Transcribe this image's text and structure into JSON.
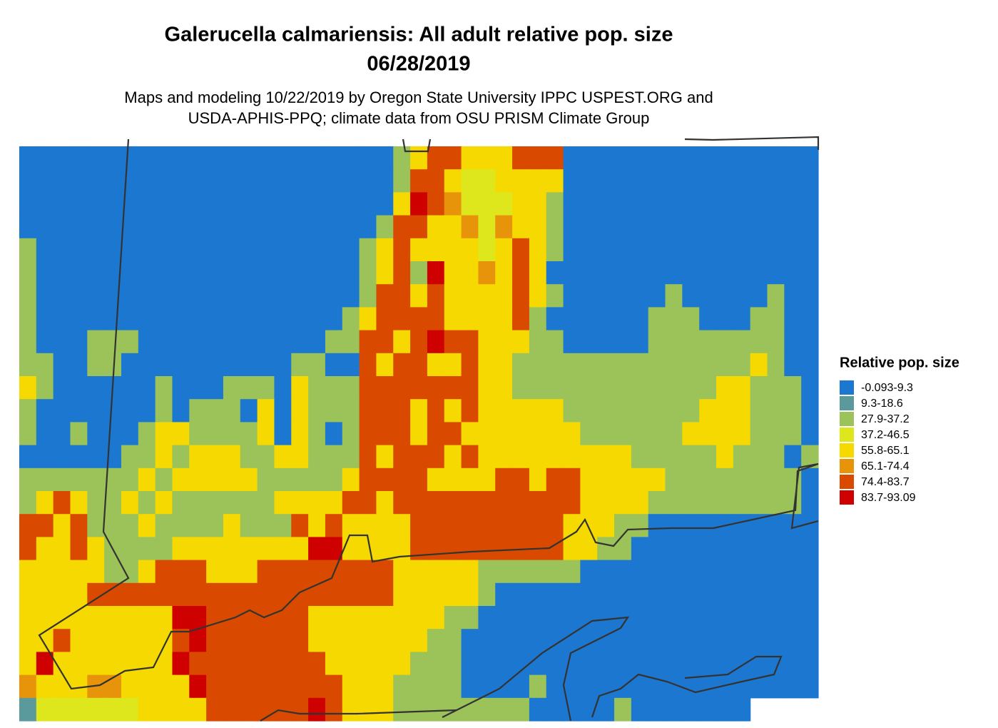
{
  "map": {
    "title": "Galerucella calmariensis: All adult relative pop. size",
    "date": "06/28/2019",
    "subtitle_lines": [
      "Maps and modeling 10/22/2019 by Oregon State University IPPC USPEST.ORG and",
      "USDA-APHIS-PPQ; climate data from OSU PRISM Climate Group"
    ],
    "legend": {
      "title": "Relative pop. size",
      "items": [
        {
          "label": "-0.093-9.3",
          "color": "#1c77d0"
        },
        {
          "label": "9.3-18.6",
          "color": "#5b9a9c"
        },
        {
          "label": "27.9-37.2",
          "color": "#9cc25a"
        },
        {
          "label": "37.2-46.5",
          "color": "#dde71c"
        },
        {
          "label": "55.8-65.1",
          "color": "#f6d900"
        },
        {
          "label": "65.1-74.4",
          "color": "#e8940a"
        },
        {
          "label": "74.4-83.7",
          "color": "#d94a00"
        },
        {
          "label": "83.7-93.09",
          "color": "#cf0000"
        }
      ]
    },
    "raster": [
      [
        0,
        0,
        0,
        0,
        0,
        0,
        0,
        0,
        0,
        0,
        0,
        0,
        0,
        0,
        0,
        0,
        0,
        0,
        0,
        0,
        0,
        0,
        2,
        4,
        6,
        6,
        4,
        4,
        4,
        6,
        6,
        6,
        0,
        0,
        0,
        0,
        0,
        0,
        0,
        0,
        0,
        0,
        0,
        0,
        0,
        0,
        0
      ],
      [
        0,
        0,
        0,
        0,
        0,
        0,
        0,
        0,
        0,
        0,
        0,
        0,
        0,
        0,
        0,
        0,
        0,
        0,
        0,
        0,
        0,
        0,
        2,
        6,
        6,
        4,
        3,
        3,
        4,
        4,
        4,
        4,
        0,
        0,
        0,
        0,
        0,
        0,
        0,
        0,
        0,
        0,
        0,
        0,
        0,
        0,
        0
      ],
      [
        0,
        0,
        0,
        0,
        0,
        0,
        0,
        0,
        0,
        0,
        0,
        0,
        0,
        0,
        0,
        0,
        0,
        0,
        0,
        0,
        0,
        0,
        4,
        7,
        6,
        5,
        3,
        3,
        3,
        4,
        4,
        2,
        0,
        0,
        0,
        0,
        0,
        0,
        0,
        0,
        0,
        0,
        0,
        0,
        0,
        0,
        0
      ],
      [
        0,
        0,
        0,
        0,
        0,
        0,
        0,
        0,
        0,
        0,
        0,
        0,
        0,
        0,
        0,
        0,
        0,
        0,
        0,
        0,
        0,
        2,
        6,
        6,
        4,
        4,
        5,
        3,
        5,
        4,
        4,
        2,
        0,
        0,
        0,
        0,
        0,
        0,
        0,
        0,
        0,
        0,
        0,
        0,
        0,
        0,
        0
      ],
      [
        2,
        0,
        0,
        0,
        0,
        0,
        0,
        0,
        0,
        0,
        0,
        0,
        0,
        0,
        0,
        0,
        0,
        0,
        0,
        0,
        2,
        4,
        6,
        4,
        4,
        4,
        4,
        3,
        4,
        6,
        4,
        2,
        0,
        0,
        0,
        0,
        0,
        0,
        0,
        0,
        0,
        0,
        0,
        0,
        0,
        0,
        0
      ],
      [
        2,
        0,
        0,
        0,
        0,
        0,
        0,
        0,
        0,
        0,
        0,
        0,
        0,
        0,
        0,
        0,
        0,
        0,
        0,
        0,
        2,
        4,
        6,
        2,
        7,
        4,
        4,
        5,
        4,
        6,
        4,
        0,
        0,
        0,
        0,
        0,
        0,
        0,
        0,
        0,
        0,
        0,
        0,
        0,
        0,
        0,
        0
      ],
      [
        2,
        0,
        0,
        0,
        0,
        0,
        0,
        0,
        0,
        0,
        0,
        0,
        0,
        0,
        0,
        0,
        0,
        0,
        0,
        0,
        2,
        6,
        6,
        4,
        6,
        4,
        4,
        4,
        4,
        6,
        4,
        2,
        0,
        0,
        0,
        0,
        0,
        0,
        2,
        0,
        0,
        0,
        0,
        0,
        2,
        0,
        0
      ],
      [
        2,
        0,
        0,
        0,
        0,
        0,
        0,
        0,
        0,
        0,
        0,
        0,
        0,
        0,
        0,
        0,
        0,
        0,
        0,
        2,
        4,
        6,
        6,
        6,
        6,
        4,
        4,
        4,
        4,
        6,
        2,
        0,
        0,
        0,
        0,
        0,
        0,
        2,
        2,
        2,
        0,
        0,
        0,
        2,
        2,
        0,
        0
      ],
      [
        2,
        0,
        0,
        0,
        2,
        2,
        2,
        0,
        0,
        0,
        0,
        0,
        0,
        0,
        0,
        0,
        0,
        0,
        2,
        2,
        6,
        6,
        4,
        6,
        7,
        6,
        6,
        4,
        4,
        4,
        2,
        2,
        0,
        0,
        0,
        0,
        0,
        2,
        2,
        2,
        2,
        2,
        2,
        2,
        2,
        0,
        0
      ],
      [
        2,
        2,
        0,
        0,
        2,
        2,
        0,
        0,
        0,
        0,
        0,
        0,
        0,
        0,
        0,
        0,
        2,
        2,
        0,
        0,
        6,
        4,
        6,
        6,
        4,
        4,
        6,
        4,
        4,
        2,
        2,
        2,
        2,
        2,
        2,
        2,
        2,
        2,
        2,
        2,
        2,
        2,
        2,
        4,
        2,
        0,
        0
      ],
      [
        4,
        2,
        0,
        0,
        0,
        0,
        0,
        0,
        2,
        0,
        0,
        0,
        2,
        2,
        2,
        0,
        4,
        2,
        2,
        2,
        6,
        6,
        6,
        6,
        6,
        6,
        6,
        4,
        4,
        2,
        2,
        2,
        2,
        2,
        2,
        2,
        2,
        2,
        2,
        2,
        2,
        4,
        4,
        2,
        2,
        2,
        0
      ],
      [
        2,
        0,
        0,
        0,
        0,
        0,
        0,
        0,
        2,
        0,
        2,
        2,
        2,
        0,
        4,
        0,
        4,
        2,
        2,
        2,
        6,
        6,
        6,
        4,
        6,
        4,
        6,
        4,
        4,
        4,
        4,
        4,
        2,
        2,
        2,
        2,
        2,
        2,
        2,
        2,
        4,
        4,
        4,
        2,
        2,
        2,
        0
      ],
      [
        2,
        0,
        0,
        2,
        0,
        0,
        0,
        2,
        4,
        4,
        2,
        2,
        2,
        2,
        4,
        0,
        4,
        2,
        0,
        2,
        6,
        6,
        6,
        4,
        6,
        6,
        4,
        4,
        4,
        4,
        4,
        4,
        4,
        2,
        2,
        2,
        2,
        2,
        2,
        4,
        4,
        4,
        4,
        2,
        2,
        2,
        0
      ],
      [
        0,
        0,
        0,
        0,
        0,
        0,
        2,
        2,
        4,
        2,
        4,
        4,
        4,
        2,
        2,
        4,
        4,
        2,
        2,
        2,
        6,
        4,
        6,
        6,
        6,
        4,
        6,
        4,
        4,
        4,
        4,
        4,
        4,
        4,
        4,
        4,
        2,
        2,
        2,
        2,
        2,
        4,
        2,
        2,
        2,
        0,
        2
      ],
      [
        2,
        2,
        2,
        2,
        2,
        2,
        2,
        4,
        2,
        4,
        4,
        4,
        4,
        4,
        2,
        2,
        2,
        2,
        2,
        4,
        6,
        6,
        6,
        6,
        4,
        4,
        4,
        4,
        6,
        6,
        4,
        6,
        6,
        4,
        4,
        4,
        4,
        4,
        2,
        2,
        2,
        2,
        2,
        2,
        2,
        2,
        0
      ],
      [
        2,
        4,
        6,
        4,
        2,
        2,
        4,
        2,
        4,
        2,
        2,
        2,
        2,
        2,
        2,
        4,
        4,
        4,
        4,
        6,
        6,
        4,
        6,
        6,
        6,
        6,
        6,
        6,
        6,
        6,
        6,
        6,
        6,
        4,
        4,
        4,
        4,
        2,
        2,
        2,
        2,
        2,
        2,
        2,
        2,
        2,
        0
      ],
      [
        6,
        6,
        4,
        6,
        2,
        2,
        2,
        4,
        2,
        2,
        2,
        2,
        4,
        2,
        2,
        2,
        6,
        4,
        6,
        4,
        4,
        4,
        4,
        6,
        6,
        6,
        6,
        6,
        6,
        6,
        6,
        6,
        4,
        4,
        4,
        2,
        2,
        0,
        0,
        0,
        0,
        0,
        0,
        0,
        0,
        0,
        0
      ],
      [
        6,
        4,
        4,
        6,
        4,
        2,
        2,
        2,
        2,
        4,
        4,
        4,
        4,
        4,
        4,
        4,
        4,
        7,
        7,
        4,
        4,
        4,
        4,
        6,
        6,
        6,
        6,
        6,
        6,
        6,
        6,
        6,
        4,
        4,
        2,
        2,
        0,
        0,
        0,
        0,
        0,
        0,
        0,
        0,
        0,
        0,
        0
      ],
      [
        4,
        4,
        4,
        4,
        4,
        2,
        2,
        4,
        6,
        6,
        6,
        4,
        4,
        4,
        6,
        6,
        6,
        6,
        6,
        6,
        6,
        6,
        4,
        4,
        4,
        4,
        4,
        2,
        2,
        2,
        2,
        2,
        2,
        0,
        0,
        0,
        0,
        0,
        0,
        0,
        0,
        0,
        0,
        0,
        0,
        0,
        0
      ],
      [
        4,
        4,
        4,
        4,
        6,
        6,
        6,
        6,
        6,
        6,
        6,
        6,
        6,
        6,
        6,
        6,
        6,
        6,
        6,
        6,
        6,
        6,
        4,
        4,
        4,
        4,
        4,
        2,
        0,
        0,
        0,
        0,
        0,
        0,
        0,
        0,
        0,
        0,
        0,
        0,
        0,
        0,
        0,
        0,
        0,
        0,
        0
      ],
      [
        4,
        4,
        4,
        4,
        4,
        4,
        4,
        4,
        4,
        7,
        7,
        6,
        6,
        6,
        6,
        6,
        6,
        4,
        4,
        4,
        4,
        4,
        4,
        4,
        4,
        2,
        2,
        0,
        0,
        0,
        0,
        0,
        0,
        0,
        0,
        0,
        0,
        0,
        0,
        0,
        0,
        0,
        0,
        0,
        0,
        0,
        0
      ],
      [
        4,
        4,
        6,
        4,
        4,
        4,
        4,
        4,
        4,
        6,
        7,
        6,
        6,
        6,
        6,
        6,
        6,
        4,
        4,
        4,
        4,
        4,
        4,
        4,
        2,
        2,
        0,
        0,
        0,
        0,
        0,
        0,
        0,
        0,
        0,
        0,
        0,
        0,
        0,
        0,
        0,
        0,
        0,
        0,
        0,
        0,
        0
      ],
      [
        4,
        7,
        4,
        4,
        4,
        4,
        4,
        4,
        4,
        7,
        6,
        6,
        6,
        6,
        6,
        6,
        6,
        6,
        4,
        4,
        4,
        4,
        4,
        2,
        2,
        2,
        0,
        0,
        0,
        0,
        0,
        0,
        0,
        0,
        0,
        0,
        0,
        0,
        0,
        0,
        0,
        0,
        0,
        0,
        0,
        0,
        0
      ],
      [
        5,
        4,
        4,
        4,
        5,
        5,
        4,
        4,
        4,
        4,
        7,
        6,
        6,
        6,
        6,
        6,
        6,
        6,
        6,
        4,
        4,
        4,
        2,
        2,
        2,
        2,
        0,
        0,
        0,
        0,
        2,
        0,
        0,
        0,
        0,
        0,
        0,
        0,
        0,
        0,
        0,
        0,
        0,
        0,
        0,
        0,
        0
      ],
      [
        1,
        3,
        3,
        3,
        3,
        3,
        3,
        4,
        4,
        4,
        4,
        6,
        6,
        6,
        6,
        6,
        6,
        7,
        6,
        4,
        4,
        4,
        2,
        2,
        2,
        2,
        2,
        2,
        2,
        2,
        0,
        0,
        0,
        0,
        0,
        2,
        0,
        0,
        0,
        0,
        0,
        0,
        0,
        null,
        null,
        null,
        null
      ]
    ]
  }
}
